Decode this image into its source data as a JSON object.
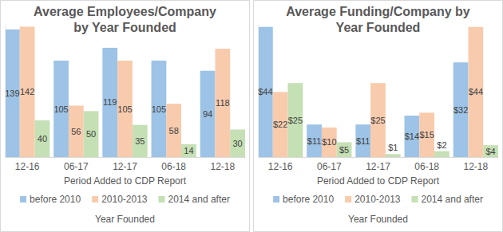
{
  "chart_data": [
    {
      "type": "bar",
      "title": "Average Employees/Company by Year Founded",
      "categories": [
        "12-16",
        "06-17",
        "12-17",
        "06-18",
        "12-18"
      ],
      "x_label": "Period Added to CDP Report",
      "legend_title": "Year Founded",
      "series": [
        {
          "name": "before 2010",
          "color": "#9dc3e6",
          "values": [
            139,
            105,
            119,
            105,
            94
          ]
        },
        {
          "name": "2010-2013",
          "color": "#f8cbad",
          "values": [
            142,
            56,
            105,
            58,
            118
          ]
        },
        {
          "name": "2014 and after",
          "color": "#c5e0b4",
          "values": [
            40,
            50,
            35,
            14,
            30
          ]
        }
      ],
      "ylim": [
        0,
        145
      ],
      "grid": false,
      "legend": "bottom",
      "data_labels": true,
      "tick_labels": "x"
    },
    {
      "type": "bar",
      "title": "Average Funding/Company by Year Founded",
      "categories": [
        "12-16",
        "06-17",
        "12-17",
        "06-18",
        "12-18"
      ],
      "x_label": "Period Added to CDP Report",
      "legend_title": "Year Founded",
      "series": [
        {
          "name": "before 2010",
          "color": "#9dc3e6",
          "values": [
            44,
            11,
            11,
            14,
            32
          ],
          "value_labels": [
            "$44",
            "$11",
            "$11",
            "$14",
            "$32"
          ]
        },
        {
          "name": "2010-2013",
          "color": "#f8cbad",
          "values": [
            22,
            10,
            25,
            15,
            44
          ],
          "value_labels": [
            "$22",
            "$10",
            "$25",
            "$15",
            "$44"
          ]
        },
        {
          "name": "2014 and after",
          "color": "#c5e0b4",
          "values": [
            25,
            5,
            1,
            2,
            4
          ],
          "value_labels": [
            "$25",
            "$5",
            "$1",
            "$2",
            "$4"
          ]
        }
      ],
      "ylim": [
        0,
        45
      ],
      "grid": false,
      "legend": "bottom",
      "data_labels": true,
      "tick_labels": "x"
    }
  ]
}
